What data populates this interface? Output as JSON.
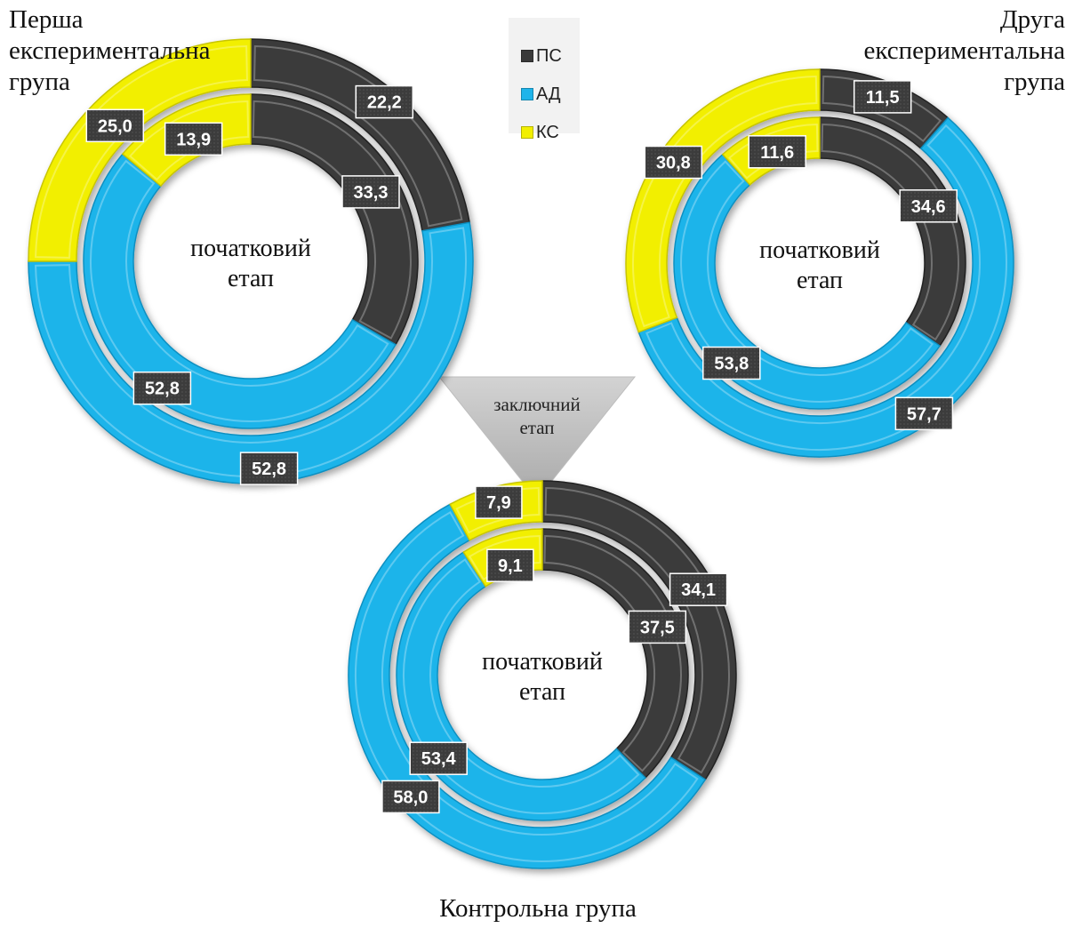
{
  "legend": [
    {
      "key": "ps",
      "label": "ПС",
      "color": "#3a3a3a"
    },
    {
      "key": "ad",
      "label": "АД",
      "color": "#1fb4ea"
    },
    {
      "key": "ks",
      "label": "КС",
      "color": "#f2ef00"
    }
  ],
  "titles": {
    "first": "Перша експериментальна група",
    "second": "Друга експериментальна група",
    "control": "Контрольна група"
  },
  "stage_labels": {
    "initial": "початковий етап",
    "final": "заключний етап"
  },
  "chart_data": [
    {
      "type": "donut",
      "title": "Перша експериментальна група",
      "center_label": "початковий етап",
      "categories": [
        "ПС",
        "АД",
        "КС"
      ],
      "series": [
        {
          "ring": "outer",
          "values": [
            22.2,
            52.8,
            25.0
          ],
          "labels": [
            "22,2",
            "52,8",
            "25,0"
          ]
        },
        {
          "ring": "inner",
          "values": [
            33.3,
            52.8,
            13.9
          ],
          "labels": [
            "33,3",
            "52,8",
            "13,9"
          ]
        }
      ]
    },
    {
      "type": "donut",
      "title": "Друга експериментальна група",
      "center_label": "початковий етап",
      "categories": [
        "ПС",
        "АД",
        "КС"
      ],
      "series": [
        {
          "ring": "outer",
          "values": [
            11.5,
            57.7,
            30.8
          ],
          "labels": [
            "11,5",
            "57,7",
            "30,8"
          ]
        },
        {
          "ring": "inner",
          "values": [
            34.6,
            53.8,
            11.6
          ],
          "labels": [
            "34,6",
            "53,8",
            "11,6"
          ]
        }
      ]
    },
    {
      "type": "donut",
      "title": "Контрольна група",
      "center_label": "початковий етап",
      "categories": [
        "ПС",
        "АД",
        "КС"
      ],
      "series": [
        {
          "ring": "outer",
          "values": [
            34.1,
            58.0,
            7.9
          ],
          "labels": [
            "34,1",
            "58,0",
            "7,9"
          ]
        },
        {
          "ring": "inner",
          "values": [
            37.5,
            53.4,
            9.1
          ],
          "labels": [
            "37,5",
            "53,4",
            "9,1"
          ]
        }
      ]
    }
  ]
}
